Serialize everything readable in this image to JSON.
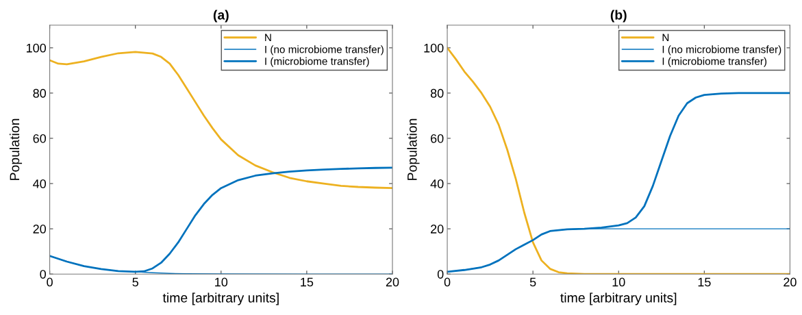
{
  "chart_data": [
    {
      "type": "line",
      "title": "(a)",
      "xlabel": "time [arbitrary units]",
      "ylabel": "Population",
      "xlim": [
        0,
        20
      ],
      "xticks": [
        0,
        5,
        10,
        15,
        20
      ],
      "ylim": [
        0,
        110
      ],
      "yticks": [
        0,
        20,
        40,
        60,
        80,
        100
      ],
      "grid": false,
      "legend": "top right",
      "line_style": "solid",
      "marker": "none",
      "series": [
        {
          "name": "N",
          "color": "#edb120",
          "x": [
            0,
            0.5,
            1,
            2,
            3,
            4,
            5,
            6,
            6.5,
            7,
            7.5,
            8,
            8.5,
            9,
            9.5,
            10,
            11,
            12,
            13,
            14,
            15,
            16,
            17,
            18,
            19,
            20
          ],
          "values": [
            94.5,
            93,
            92.7,
            94,
            96,
            97.6,
            98.2,
            97.5,
            96,
            93,
            88,
            82,
            76,
            70,
            64.5,
            59.5,
            52.5,
            48,
            45,
            42.5,
            41,
            40,
            39,
            38.5,
            38.2,
            38
          ]
        },
        {
          "name": "I (no microbiome transfer)",
          "color": "#0072bd",
          "x": [
            0,
            1,
            2,
            3,
            4,
            5,
            6,
            7,
            8,
            10,
            15,
            20
          ],
          "values": [
            8,
            5.5,
            3.5,
            2.2,
            1.3,
            1,
            0.6,
            0.3,
            0.15,
            0.05,
            0,
            0
          ]
        },
        {
          "name": "I (microbiome transfer)",
          "color": "#0072bd",
          "x": [
            0,
            1,
            2,
            3,
            4,
            5,
            5.5,
            6,
            6.5,
            7,
            7.5,
            8,
            8.5,
            9,
            9.5,
            10,
            11,
            12,
            13,
            14,
            15,
            16,
            17,
            18,
            19,
            20
          ],
          "values": [
            8,
            5.5,
            3.5,
            2.2,
            1.3,
            1,
            1.2,
            2.5,
            5,
            9,
            14,
            20,
            26,
            31,
            35,
            38,
            41.5,
            43.5,
            44.5,
            45.3,
            45.8,
            46.2,
            46.5,
            46.7,
            46.9,
            47
          ]
        }
      ]
    },
    {
      "type": "line",
      "title": "(b)",
      "xlabel": "time [arbitrary units]",
      "ylabel": "Population",
      "xlim": [
        0,
        20
      ],
      "xticks": [
        0,
        5,
        10,
        15,
        20
      ],
      "ylim": [
        0,
        110
      ],
      "yticks": [
        0,
        20,
        40,
        60,
        80,
        100
      ],
      "grid": false,
      "legend": "top right",
      "line_style": "solid",
      "marker": "none",
      "series": [
        {
          "name": "N",
          "color": "#edb120",
          "x": [
            0,
            0.5,
            1,
            1.5,
            2,
            2.5,
            3,
            3.5,
            4,
            4.5,
            5,
            5.5,
            6,
            6.5,
            7,
            8,
            20
          ],
          "values": [
            100,
            95,
            89.5,
            85,
            80,
            74,
            66,
            55,
            42,
            27,
            14,
            6,
            2.3,
            0.8,
            0.3,
            0,
            0
          ]
        },
        {
          "name": "I (no microbiome transfer)",
          "color": "#0072bd",
          "x": [
            0,
            1,
            2,
            2.5,
            3,
            3.5,
            4,
            4.5,
            5,
            5.5,
            6,
            7,
            8,
            20
          ],
          "values": [
            1,
            1.8,
            3,
            4.2,
            6,
            8.5,
            11,
            13,
            15,
            17.5,
            19,
            19.8,
            20,
            20
          ]
        },
        {
          "name": "I (microbiome transfer)",
          "color": "#0072bd",
          "x": [
            0,
            1,
            2,
            2.5,
            3,
            3.5,
            4,
            4.5,
            5,
            5.5,
            6,
            7,
            8,
            9,
            10,
            10.5,
            11,
            11.5,
            12,
            12.5,
            13,
            13.5,
            14,
            14.5,
            15,
            16,
            17,
            20
          ],
          "values": [
            1,
            1.8,
            3,
            4.2,
            6,
            8.5,
            11,
            13,
            15,
            17.5,
            19,
            19.8,
            20,
            20.5,
            21.5,
            22.5,
            25,
            30,
            39,
            50,
            61,
            70,
            75.5,
            78,
            79.2,
            79.8,
            80,
            80
          ]
        }
      ]
    }
  ]
}
